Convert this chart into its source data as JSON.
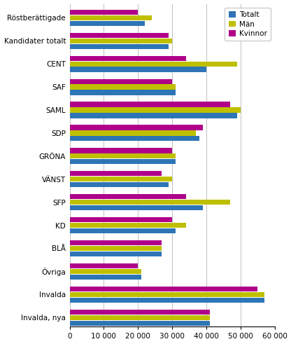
{
  "categories": [
    "Röstberättigade",
    "Kandidater totalt",
    "CENT",
    "SAF",
    "SAML",
    "SDP",
    "GRÖNA",
    "VÄNST",
    "SFP",
    "KD",
    "BLÅ",
    "Övriga",
    "Invalda",
    "Invalda, nya"
  ],
  "totalt": [
    22000,
    29000,
    40000,
    31000,
    49000,
    38000,
    31000,
    29000,
    39000,
    31000,
    27000,
    21000,
    57000,
    41000
  ],
  "man": [
    24000,
    30000,
    49000,
    31000,
    50000,
    37000,
    31000,
    30000,
    47000,
    34000,
    27000,
    21000,
    57000,
    41000
  ],
  "kvinnor": [
    20000,
    29000,
    34000,
    30000,
    47000,
    39000,
    30000,
    27000,
    34000,
    30000,
    27000,
    20000,
    55000,
    41000
  ],
  "color_totalt": "#2E75B6",
  "color_man": "#BFBF00",
  "color_kvinnor": "#B0008A",
  "xlim": [
    0,
    60000
  ],
  "xticks": [
    0,
    10000,
    20000,
    30000,
    40000,
    50000,
    60000
  ],
  "xtick_labels": [
    "0",
    "10 000",
    "20 000",
    "30 000",
    "40 000",
    "50 000",
    "60 000"
  ],
  "legend_labels": [
    "Totalt",
    "Män",
    "Kvinnor"
  ],
  "figsize": [
    4.16,
    4.91
  ],
  "dpi": 100
}
